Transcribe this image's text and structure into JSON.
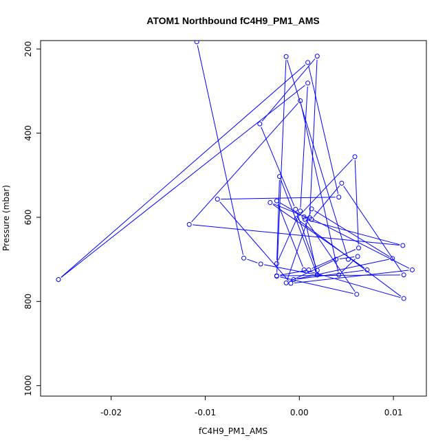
{
  "chart_data": {
    "type": "line",
    "title": "ATOM1 Northbound fC4H9_PM1_AMS",
    "xlabel": "fC4H9_PM1_AMS",
    "ylabel": "Pressure (mbar)",
    "xlim": [
      -0.0275,
      0.0135
    ],
    "ylim": [
      1025,
      180
    ],
    "y_reversed": true,
    "x_ticks": [
      -0.02,
      -0.01,
      0.0,
      0.01
    ],
    "x_tick_labels": [
      "-0.02",
      "-0.01",
      "0.00",
      "0.01"
    ],
    "y_ticks": [
      200,
      400,
      600,
      800,
      1000
    ],
    "y_tick_labels": [
      "200",
      "400",
      "600",
      "800",
      "1000"
    ],
    "grid": false,
    "legend": "none",
    "series_color": "#0000ff",
    "series": [
      {
        "marker": "open-circle",
        "x": [
          -0.0109,
          -0.0059,
          -0.0041,
          0.0019,
          -0.0021,
          -0.0024,
          0.0001,
          0.0009,
          -0.0256,
          0.0009,
          0.0042,
          -0.0087,
          -0.0009,
          0.012,
          0.0011,
          0.0019,
          -0.0042,
          -0.0004,
          0.0019,
          0.0019,
          0.0006,
          0.011,
          -0.0117,
          0.0001,
          0.0042,
          0.0062,
          0.0039,
          -0.0014,
          0.0013,
          0.0099,
          -0.0006,
          0.0072,
          -0.0031,
          0.0013,
          0.0045,
          0.0111,
          -0.0024,
          0.001,
          0.0063,
          0.0059,
          -0.0003,
          0.0111,
          0.0005,
          -0.0024,
          0.0005,
          0.0061,
          -0.0024,
          -0.0014,
          0.0052
        ],
        "y": [
          183,
          697,
          711,
          737,
          503,
          710,
          585,
          281,
          748,
          232,
          552,
          557,
          757,
          725,
          601,
          217,
          378,
          581,
          726,
          737,
          605,
          667,
          617,
          323,
          737,
          693,
          700,
          756,
          580,
          698,
          748,
          725,
          565,
          605,
          519,
          737,
          739,
          725,
          673,
          456,
          603,
          793,
          725,
          561,
          599,
          783,
          740,
          218,
          700
        ]
      }
    ]
  }
}
